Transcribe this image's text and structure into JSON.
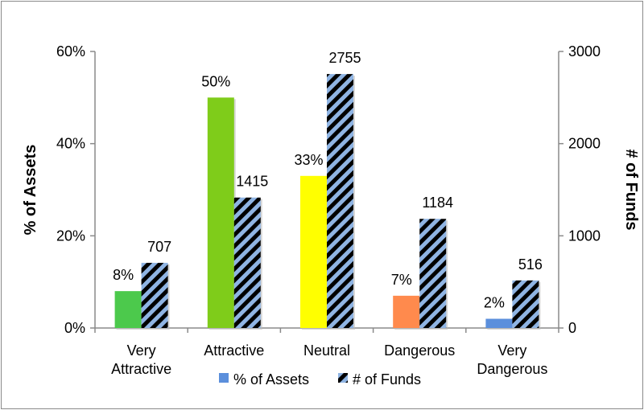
{
  "chart_data": {
    "type": "bar",
    "categories": [
      "Very Attractive",
      "Attractive",
      "Neutral",
      "Dangerous",
      "Very Dangerous"
    ],
    "category_lines": [
      [
        "Very",
        "Attractive"
      ],
      [
        "Attractive"
      ],
      [
        "Neutral"
      ],
      [
        "Dangerous"
      ],
      [
        "Very",
        "Dangerous"
      ]
    ],
    "series": [
      {
        "name": "% of Assets",
        "axis": "left",
        "values": [
          8,
          50,
          33,
          7,
          2
        ],
        "labels": [
          "8%",
          "50%",
          "33%",
          "7%",
          "2%"
        ],
        "colors": [
          "#4cc94c",
          "#7fcc1a",
          "#ffff00",
          "#ff8a4d",
          "#5b8fdc"
        ],
        "legend_color": "#5b8fdc"
      },
      {
        "name": "# of Funds",
        "axis": "right",
        "values": [
          707,
          1415,
          2755,
          1184,
          516
        ],
        "labels": [
          "707",
          "1415",
          "2755",
          "1184",
          "516"
        ],
        "pattern_colors": [
          "#000000",
          "#8fb4e3"
        ]
      }
    ],
    "ylabel": "% of Assets",
    "y2label": "# of Funds",
    "ylim": [
      0,
      60
    ],
    "y2lim": [
      0,
      3000
    ],
    "yticks": [
      "0%",
      "20%",
      "40%",
      "60%"
    ],
    "y2ticks": [
      "0",
      "1000",
      "2000",
      "3000"
    ],
    "legend_position": "bottom",
    "grid": false
  }
}
